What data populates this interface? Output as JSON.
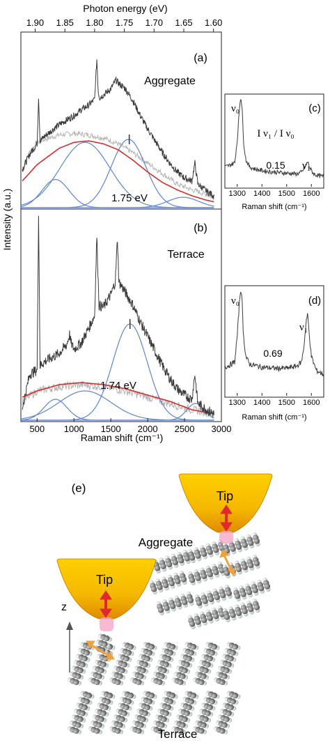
{
  "figure_labels": {
    "a": "(a)",
    "b": "(b)",
    "c": "(c)",
    "d": "(d)",
    "e": "(e)"
  },
  "colors": {
    "spectrum": "#3a3a3a",
    "fit_total": "#d62c2c",
    "fit_component": "#5b84d6",
    "reference": "#b4b4b4",
    "tip_gold": "#f5b800",
    "tip_arrow": "#e0282e",
    "dipole_arrow": "#f0a23a"
  },
  "chart_data": [
    {
      "id": "main",
      "type": "line",
      "xlabel": "Raman shift (cm⁻¹)",
      "ylabel": "Intensity (a.u.)",
      "top_axis_label": "Photon energy (eV)",
      "xlim": [
        280,
        3000
      ],
      "xticks": [
        500,
        1000,
        1500,
        2000,
        2500,
        3000
      ],
      "xtick_labels": [
        "500",
        "1000",
        "1500",
        "2000",
        "2500",
        "3000"
      ],
      "top_ticks_ev": [
        1.9,
        1.85,
        1.8,
        1.75,
        1.7,
        1.65,
        1.6
      ],
      "top_tick_labels": [
        "1.90",
        "1.85",
        "1.80",
        "1.75",
        "1.70",
        "1.65",
        "1.60"
      ],
      "panels": [
        {
          "label": "(a)",
          "sample": "Aggregate",
          "annotation": "1.75 eV",
          "ylim": [
            0,
            1
          ],
          "spectrum": {
            "x": [
              300,
              400,
              500,
              520,
              540,
              600,
              700,
              800,
              900,
              1000,
              1100,
              1200,
              1280,
              1310,
              1330,
              1350,
              1400,
              1500,
              1570,
              1600,
              1650,
              1700,
              1800,
              1900,
              2000,
              2100,
              2200,
              2300,
              2400,
              2500,
              2600,
              2640,
              2680,
              2800,
              2900
            ],
            "y": [
              0.26,
              0.36,
              0.43,
              0.75,
              0.45,
              0.48,
              0.52,
              0.56,
              0.59,
              0.62,
              0.66,
              0.69,
              0.73,
              1.0,
              0.78,
              0.74,
              0.76,
              0.8,
              0.86,
              0.84,
              0.82,
              0.8,
              0.72,
              0.62,
              0.53,
              0.45,
              0.37,
              0.3,
              0.24,
              0.2,
              0.18,
              0.3,
              0.16,
              0.11,
              0.08
            ]
          },
          "reference": {
            "x": [
              300,
              400,
              500,
              600,
              800,
              1000,
              1200,
              1400,
              1600,
              1800,
              2000,
              2200,
              2400,
              2600,
              2800,
              2900
            ],
            "y": [
              0.24,
              0.38,
              0.44,
              0.46,
              0.49,
              0.5,
              0.49,
              0.47,
              0.43,
              0.37,
              0.3,
              0.23,
              0.16,
              0.12,
              0.09,
              0.07
            ]
          },
          "fit_total": {
            "x": [
              300,
              500,
              800,
              1000,
              1200,
              1400,
              1600,
              1800,
              2000,
              2200,
              2400,
              2600,
              2800,
              2900
            ],
            "y": [
              0.18,
              0.29,
              0.4,
              0.44,
              0.45,
              0.43,
              0.39,
              0.32,
              0.24,
              0.17,
              0.12,
              0.08,
              0.05,
              0.04
            ]
          },
          "components": [
            {
              "center": 750,
              "height": 0.19,
              "width": 260
            },
            {
              "center": 1150,
              "height": 0.44,
              "width": 480
            },
            {
              "center": 1740,
              "height": 0.46,
              "width": 330
            },
            {
              "center": 2480,
              "height": 0.07,
              "width": 300
            }
          ],
          "marker_x": 1750
        },
        {
          "label": "(b)",
          "sample": "Terrace",
          "annotation": "1.74 eV",
          "ylim": [
            0,
            1
          ],
          "spectrum": {
            "x": [
              300,
              400,
              500,
              520,
              540,
              600,
              700,
              800,
              900,
              940,
              960,
              1000,
              1100,
              1200,
              1280,
              1310,
              1340,
              1400,
              1500,
              1560,
              1590,
              1610,
              1650,
              1700,
              1800,
              1900,
              2000,
              2100,
              2200,
              2300,
              2400,
              2500,
              2600,
              2640,
              2680,
              2800,
              2900
            ],
            "y": [
              0.06,
              0.22,
              0.24,
              1.0,
              0.26,
              0.28,
              0.3,
              0.32,
              0.36,
              0.41,
              0.37,
              0.34,
              0.37,
              0.44,
              0.5,
              0.88,
              0.55,
              0.54,
              0.6,
              0.66,
              0.87,
              0.66,
              0.64,
              0.61,
              0.55,
              0.47,
              0.4,
              0.33,
              0.26,
              0.2,
              0.15,
              0.12,
              0.1,
              0.22,
              0.08,
              0.05,
              0.03
            ]
          },
          "reference": {
            "x": [
              300,
              500,
              800,
              1100,
              1400,
              1700,
              2000,
              2300,
              2600,
              2900
            ],
            "y": [
              0.09,
              0.14,
              0.16,
              0.17,
              0.16,
              0.14,
              0.11,
              0.08,
              0.05,
              0.03
            ]
          },
          "fit_total": {
            "x": [
              300,
              500,
              800,
              1100,
              1400,
              1700,
              2000,
              2300,
              2600,
              2900
            ],
            "y": [
              0.11,
              0.14,
              0.17,
              0.18,
              0.17,
              0.15,
              0.12,
              0.09,
              0.05,
              0.03
            ]
          },
          "components": [
            {
              "center": 750,
              "height": 0.1,
              "width": 220
            },
            {
              "center": 1150,
              "height": 0.14,
              "width": 500
            },
            {
              "center": 1760,
              "height": 0.46,
              "width": 330
            },
            {
              "center": 2650,
              "height": 0.08,
              "width": 170
            }
          ],
          "marker_x": 1760
        }
      ]
    },
    {
      "id": "inset_c",
      "label": "(c)",
      "type": "line",
      "xlabel": "Raman shift (cm⁻¹)",
      "xlim": [
        1250,
        1650
      ],
      "xticks": [
        1300,
        1400,
        1500,
        1600
      ],
      "xtick_labels": [
        "1300",
        "1400",
        "1500",
        "1600"
      ],
      "ratio_label": "I ν₁ / I ν₀",
      "ratio_value": "0.15",
      "peak_labels": [
        "ν₀",
        "ν₁"
      ],
      "x": [
        1250,
        1270,
        1290,
        1300,
        1310,
        1315,
        1320,
        1325,
        1335,
        1350,
        1380,
        1420,
        1460,
        1500,
        1540,
        1560,
        1575,
        1585,
        1595,
        1610,
        1630,
        1650
      ],
      "y": [
        0.2,
        0.22,
        0.25,
        0.5,
        0.9,
        1.0,
        0.85,
        0.5,
        0.28,
        0.2,
        0.17,
        0.15,
        0.14,
        0.13,
        0.12,
        0.14,
        0.2,
        0.26,
        0.18,
        0.12,
        0.1,
        0.09
      ]
    },
    {
      "id": "inset_d",
      "label": "(d)",
      "type": "line",
      "xlabel": "Raman shift (cm⁻¹)",
      "xlim": [
        1250,
        1650
      ],
      "xticks": [
        1300,
        1400,
        1500,
        1600
      ],
      "xtick_labels": [
        "1300",
        "1400",
        "1500",
        "1600"
      ],
      "ratio_value": "0.69",
      "peak_labels": [
        "ν₀",
        "ν₁"
      ],
      "x": [
        1250,
        1270,
        1290,
        1300,
        1310,
        1315,
        1320,
        1325,
        1335,
        1350,
        1400,
        1450,
        1500,
        1540,
        1560,
        1570,
        1580,
        1585,
        1590,
        1600,
        1620,
        1650
      ],
      "y": [
        0.25,
        0.27,
        0.3,
        0.55,
        0.9,
        1.0,
        0.85,
        0.55,
        0.35,
        0.28,
        0.25,
        0.24,
        0.24,
        0.26,
        0.3,
        0.45,
        0.7,
        0.75,
        0.6,
        0.35,
        0.22,
        0.18
      ]
    }
  ],
  "illustration": {
    "tip_label": "Tip",
    "aggregate_label": "Aggregate",
    "terrace_label": "Terrace",
    "axis_label": "z"
  }
}
